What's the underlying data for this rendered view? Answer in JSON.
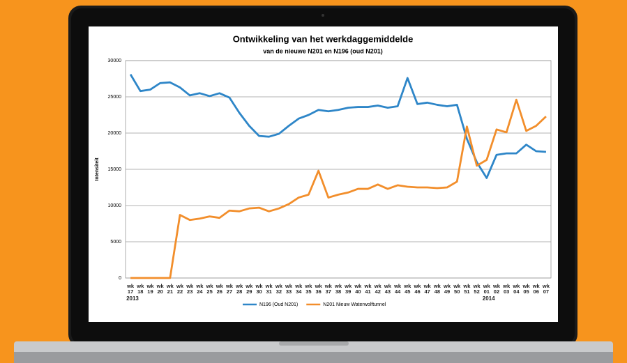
{
  "chart_data": {
    "type": "line",
    "title": "Ontwikkeling van het werkdaggemiddelde",
    "subtitle": "van de nieuwe N201 en N196 (oud N201)",
    "y_label": "Intensiteit",
    "categories": [
      "wk 17",
      "wk 18",
      "wk 19",
      "wk 20",
      "wk 21",
      "wk 22",
      "wk 23",
      "wk 24",
      "wk 25",
      "wk 26",
      "wk 27",
      "wk 28",
      "wk 29",
      "wk 30",
      "wk 31",
      "wk 32",
      "wk 33",
      "wk 34",
      "wk 35",
      "wk 36",
      "wk 37",
      "wk 38",
      "wk 39",
      "wk 40",
      "wk 41",
      "wk 42",
      "wk 43",
      "wk 44",
      "wk 45",
      "wk 46",
      "wk 47",
      "wk 48",
      "wk 49",
      "wk 50",
      "wk 51",
      "wk 52",
      "wk 01",
      "wk 02",
      "wk 03",
      "wk 04",
      "wk 05",
      "wk 06",
      "wk 07"
    ],
    "year_labels": [
      {
        "text": "2013",
        "at": "wk 17"
      },
      {
        "text": "2014",
        "at": "wk 01"
      }
    ],
    "series": [
      {
        "name": "N196 (Oud N201)",
        "color": "#2e86c8",
        "values": [
          28100,
          25800,
          26000,
          26900,
          27000,
          26300,
          25200,
          25500,
          25100,
          25500,
          24900,
          22800,
          21000,
          19600,
          19500,
          19900,
          21000,
          22000,
          22500,
          23200,
          23000,
          23200,
          23500,
          23600,
          23600,
          23800,
          23500,
          23700,
          27600,
          24000,
          24200,
          23900,
          23700,
          23900,
          19200,
          16000,
          13800,
          17000,
          17200,
          17200,
          18400,
          17500,
          17400
        ]
      },
      {
        "name": "N201 Nieuw Waterwolftunnel",
        "color": "#f28e2b",
        "values": [
          0,
          0,
          0,
          0,
          0,
          8700,
          8000,
          8200,
          8500,
          8300,
          9300,
          9200,
          9600,
          9700,
          9200,
          9600,
          10200,
          11100,
          11500,
          14800,
          11100,
          11500,
          11800,
          12300,
          12300,
          12900,
          12300,
          12800,
          12600,
          12500,
          12500,
          12400,
          12500,
          13300,
          20900,
          15500,
          16300,
          20500,
          20100,
          24600,
          20300,
          21000,
          22300
        ]
      }
    ],
    "ylim": [
      0,
      30000
    ],
    "yticks": [
      0,
      5000,
      10000,
      15000,
      20000,
      25000,
      30000
    ],
    "grid": true,
    "legend": "bottom"
  }
}
